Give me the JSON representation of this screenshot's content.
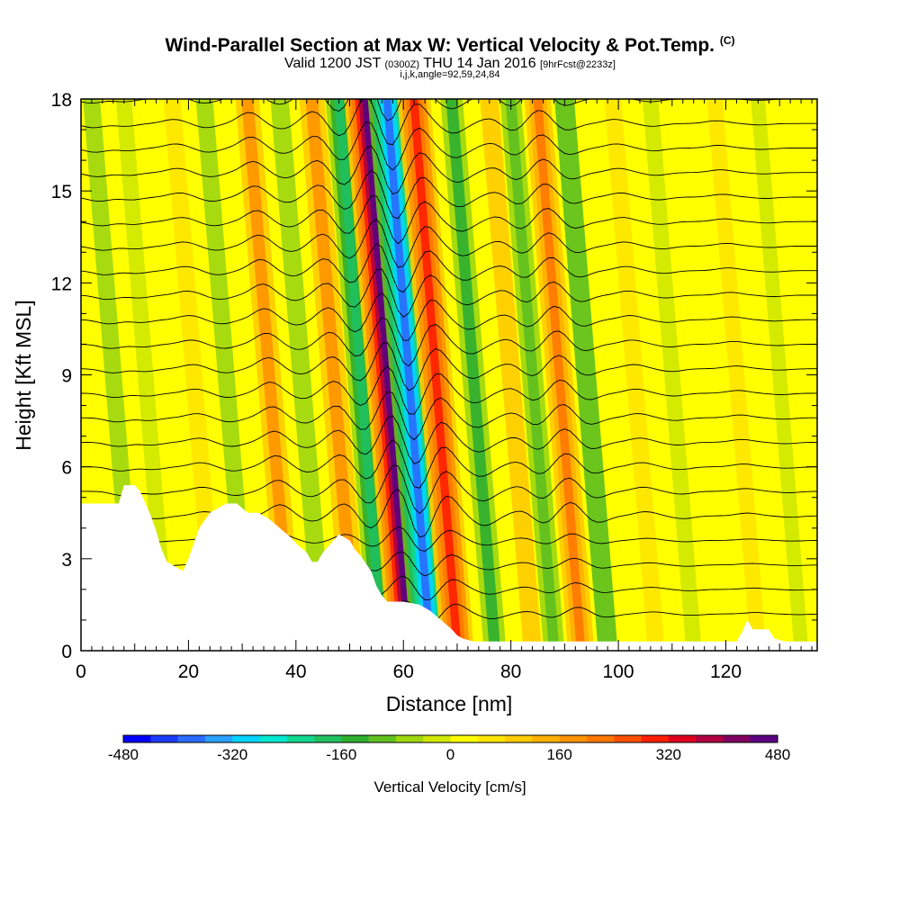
{
  "header": {
    "title": "Wind-Parallel Section at Max W: Vertical Velocity & Pot.Temp.",
    "title_mark": "(C)",
    "valid_prefix": "Valid 1200 JST",
    "valid_utc": "(0300Z)",
    "valid_date": "THU 14 Jan 2016",
    "forecast_info": "[9hrFcst@2233z]",
    "grid_info": "i,j,k,angle=92,59,24,84"
  },
  "chart_data": {
    "type": "heatmap",
    "xlabel": "Distance [nm]",
    "ylabel": "Height [Kft MSL]",
    "xlim": [
      0,
      137
    ],
    "ylim": [
      0,
      18
    ],
    "x_ticks": [
      0,
      20,
      40,
      60,
      80,
      100,
      120
    ],
    "y_ticks": [
      0,
      3,
      6,
      9,
      12,
      15,
      18
    ],
    "colorbar": {
      "label": "Vertical Velocity [cm/s]",
      "min": -480,
      "max": 480,
      "step": 40,
      "tick_values": [
        -480,
        -320,
        -160,
        0,
        160,
        320,
        480
      ],
      "tick_labels": [
        "-480",
        "-320",
        "-160",
        "0",
        "160",
        "320",
        "480"
      ],
      "colors": [
        "#0000ff",
        "#1a3cff",
        "#2a6cff",
        "#2aa0ff",
        "#00d4ff",
        "#00e8d0",
        "#10d890",
        "#20c060",
        "#30b030",
        "#60c020",
        "#a0d810",
        "#d0e800",
        "#ffff00",
        "#ffe600",
        "#ffcc00",
        "#ffb000",
        "#ff9400",
        "#ff7800",
        "#ff5000",
        "#ff2000",
        "#e00020",
        "#b00040",
        "#800060",
        "#5a0080"
      ]
    },
    "w_bands": [
      {
        "x": 6,
        "w": -60
      },
      {
        "x": 12,
        "w": -40
      },
      {
        "x": 21,
        "w": 60
      },
      {
        "x": 27,
        "w": -60
      },
      {
        "x": 35,
        "w": 160
      },
      {
        "x": 41,
        "w": -80
      },
      {
        "x": 47,
        "w": 180
      },
      {
        "x": 52,
        "w": -200
      },
      {
        "x": 57,
        "w": 440
      },
      {
        "x": 61,
        "w": -380
      },
      {
        "x": 66,
        "w": 300
      },
      {
        "x": 73,
        "w": -140
      },
      {
        "x": 80,
        "w": 80
      },
      {
        "x": 84,
        "w": -120
      },
      {
        "x": 89,
        "w": 200
      },
      {
        "x": 94,
        "w": -100
      },
      {
        "x": 103,
        "w": 60
      },
      {
        "x": 110,
        "w": -40
      },
      {
        "x": 122,
        "w": 40
      },
      {
        "x": 130,
        "w": -20
      }
    ],
    "terrain": {
      "x": [
        0,
        7,
        8,
        10,
        11,
        12,
        13,
        14,
        15,
        16,
        19,
        20,
        22,
        24,
        27,
        29,
        31,
        33,
        35,
        37,
        39,
        40,
        42,
        43,
        44,
        45,
        46,
        47,
        48,
        50,
        51,
        52,
        54,
        55,
        56,
        57,
        58,
        60,
        63,
        65,
        67,
        69,
        70,
        71,
        73,
        76,
        79,
        84,
        88,
        93,
        98,
        104,
        110,
        116,
        120,
        122,
        123,
        124,
        125,
        128,
        129,
        131,
        137
      ],
      "y": [
        4.8,
        4.8,
        5.4,
        5.4,
        5.2,
        4.8,
        4.4,
        3.9,
        3.3,
        2.9,
        2.6,
        3.0,
        4.0,
        4.5,
        4.8,
        4.8,
        4.5,
        4.5,
        4.3,
        4.0,
        3.7,
        3.5,
        3.2,
        2.9,
        2.9,
        3.2,
        3.4,
        3.6,
        3.8,
        3.6,
        3.3,
        3.1,
        2.6,
        2.1,
        1.8,
        1.6,
        1.6,
        1.6,
        1.5,
        1.3,
        1.0,
        0.7,
        0.5,
        0.4,
        0.3,
        0.3,
        0.3,
        0.3,
        0.3,
        0.3,
        0.3,
        0.3,
        0.3,
        0.3,
        0.3,
        0.3,
        0.6,
        1.0,
        0.7,
        0.7,
        0.4,
        0.3,
        0.3
      ]
    }
  }
}
